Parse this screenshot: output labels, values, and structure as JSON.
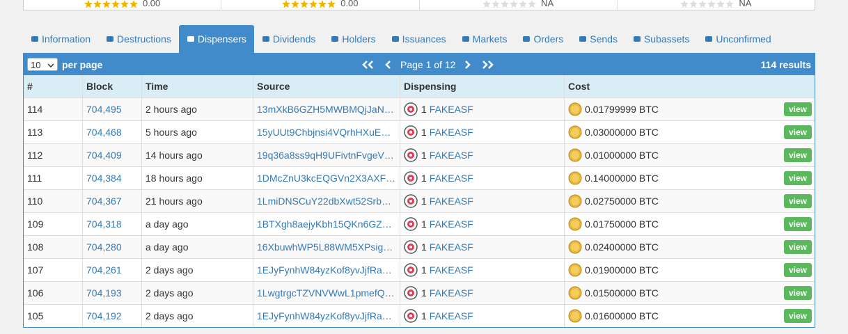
{
  "rating_strip": [
    {
      "score": "0.00"
    },
    {
      "score": "0.00"
    },
    {
      "score": "NA"
    },
    {
      "score": "NA"
    }
  ],
  "tabs": [
    "Information",
    "Destructions",
    "Dispensers",
    "Dividends",
    "Holders",
    "Issuances",
    "Markets",
    "Orders",
    "Sends",
    "Subassets",
    "Unconfirmed"
  ],
  "active_tab": 2,
  "toolbar": {
    "per_page": "10",
    "per_page_label": "per page",
    "page_label": "Page 1 of 12",
    "results": "114 results"
  },
  "table": {
    "headers": [
      "#",
      "Block",
      "Time",
      "Source",
      "Dispensing",
      "Cost"
    ],
    "action": "view",
    "rows": [
      [
        "114",
        "704,495",
        "2 hours ago",
        "13mXkB6GZH5MWBMQjJaN…",
        "1",
        "FAKEASF",
        "0.01799999 BTC"
      ],
      [
        "113",
        "704,468",
        "5 hours ago",
        "15yUUt9Chbjnsi4VQrhHXuE…",
        "1",
        "FAKEASF",
        "0.03000000 BTC"
      ],
      [
        "112",
        "704,409",
        "14 hours ago",
        "19q36a8ss9qH9UFivtnFvgeV…",
        "1",
        "FAKEASF",
        "0.01000000 BTC"
      ],
      [
        "111",
        "704,384",
        "18 hours ago",
        "1DMcZnU3kcEQGVn2X3AXF…",
        "1",
        "FAKEASF",
        "0.14000000 BTC"
      ],
      [
        "110",
        "704,367",
        "21 hours ago",
        "1LmiDNSCuY22dbXwt52Srb…",
        "1",
        "FAKEASF",
        "0.02750000 BTC"
      ],
      [
        "109",
        "704,318",
        "a day ago",
        "1BTXgh8aejyKbh15QKn6GZ…",
        "1",
        "FAKEASF",
        "0.01750000 BTC"
      ],
      [
        "108",
        "704,280",
        "a day ago",
        "16XbuwhWP5L88WM5XPsig…",
        "1",
        "FAKEASF",
        "0.02400000 BTC"
      ],
      [
        "107",
        "704,261",
        "2 days ago",
        "1EJyFynhW84yzKof8yvJjfRa…",
        "1",
        "FAKEASF",
        "0.01900000 BTC"
      ],
      [
        "106",
        "704,193",
        "2 days ago",
        "1LwgtrgcTZVNVWwL1pmefQ…",
        "1",
        "FAKEASF",
        "0.01500000 BTC"
      ],
      [
        "105",
        "704,192",
        "2 days ago",
        "1EJyFynhW84yzKof8yvJjfRa…",
        "1",
        "FAKEASF",
        "0.01600000 BTC"
      ]
    ]
  }
}
